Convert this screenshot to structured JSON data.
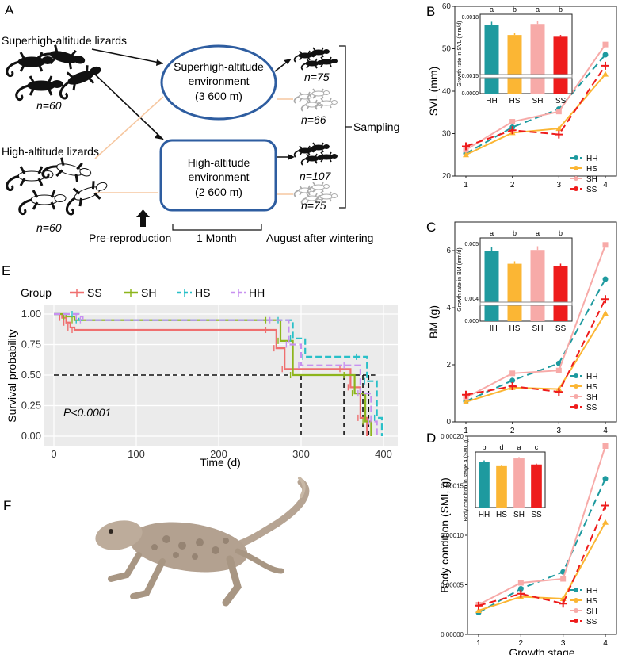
{
  "panel_letters": {
    "a": "A",
    "b": "B",
    "c": "C",
    "d": "D",
    "e": "E",
    "f": "F"
  },
  "colors": {
    "HH": "#1e9a9f",
    "HS": "#fbb634",
    "SH": "#f7aaa8",
    "SS": "#ee1c1c",
    "SS_km": "#ef6f6f",
    "SH_km": "#8db51c",
    "HS_km": "#29c0c8",
    "HH_km": "#c891f0",
    "box": "#2e5da0",
    "lizard_dark": "#111111",
    "lizard_light": "#ffffff"
  },
  "diagram": {
    "source_super_label": "Superhigh-altitude lizards",
    "source_super_n": "n=60",
    "source_high_label": "High-altitude lizards",
    "source_high_n": "n=60",
    "env_super_line1": "Superhigh-altitude",
    "env_super_line2": "environment",
    "env_super_line3": "(3 600 m)",
    "env_high_line1": "High-altitude",
    "env_high_line2": "environment",
    "env_high_line3": "(2 600 m)",
    "out_n1": "n=75",
    "out_n2": "n=66",
    "out_n3": "n=107",
    "out_n4": "n=75",
    "sampling": "Sampling",
    "pre_reproduction": "Pre-reproduction",
    "duration": "1 Month",
    "after": "August after wintering"
  },
  "chart_data": [
    {
      "id": "B",
      "type": "line",
      "title": "",
      "xlabel": "",
      "ylabel": "SVL (mm)",
      "categories": [
        1,
        2,
        3,
        4
      ],
      "ylim": [
        20,
        60
      ],
      "yticks": [
        20,
        30,
        40,
        50,
        60
      ],
      "series": [
        {
          "name": "HH",
          "values": [
            25.3,
            31.5,
            35.8,
            48.6
          ]
        },
        {
          "name": "HS",
          "values": [
            25.0,
            30.2,
            31.2,
            44.0
          ]
        },
        {
          "name": "SH",
          "values": [
            26.2,
            32.8,
            35.2,
            51.0
          ]
        },
        {
          "name": "SS",
          "values": [
            27.0,
            30.8,
            29.8,
            46.0
          ]
        }
      ],
      "inset": {
        "type": "bar",
        "ylabel": "Growth rate in SVL (mm/d)",
        "categories": [
          "HH",
          "HS",
          "SH",
          "SS"
        ],
        "values": [
          0.00155,
          0.00133,
          0.00158,
          0.00129
        ],
        "errors": [
          8e-05,
          4e-05,
          6e-05,
          4e-05
        ],
        "letters": [
          "a",
          "b",
          "a",
          "b"
        ],
        "ylim": [
          0,
          0.0018
        ],
        "yticks": [
          "0.0000",
          "0.0015",
          "0.0018"
        ]
      }
    },
    {
      "id": "C",
      "type": "line",
      "title": "",
      "xlabel": "",
      "ylabel": "BM (g)",
      "categories": [
        1,
        2,
        3,
        4
      ],
      "ylim": [
        0,
        7
      ],
      "yticks": [
        0,
        2,
        4,
        6
      ],
      "series": [
        {
          "name": "HH",
          "values": [
            0.72,
            1.45,
            2.05,
            5.0
          ]
        },
        {
          "name": "HS",
          "values": [
            0.7,
            1.2,
            1.15,
            3.8
          ]
        },
        {
          "name": "SH",
          "values": [
            0.85,
            1.7,
            1.8,
            6.2
          ]
        },
        {
          "name": "SS",
          "values": [
            0.95,
            1.25,
            1.05,
            4.3
          ]
        }
      ],
      "inset": {
        "type": "bar",
        "ylabel": "Growth rate in BM (mm/d)",
        "categories": [
          "HH",
          "HS",
          "SH",
          "SS"
        ],
        "values": [
          0.00567,
          0.00462,
          0.00573,
          0.00443
        ],
        "errors": [
          0.0003,
          0.0002,
          0.0003,
          0.0002
        ],
        "letters": [
          "a",
          "b",
          "a",
          "b"
        ],
        "ylim": [
          0,
          0.0067
        ],
        "yticks": [
          "0.000",
          "0.004",
          "0.005"
        ]
      }
    },
    {
      "id": "D",
      "type": "line",
      "title": "",
      "xlabel": "Growth stage",
      "ylabel": "Body condition (SMI, g)",
      "categories": [
        1,
        2,
        3,
        4
      ],
      "ylim": [
        0,
        0.0002
      ],
      "yticks": [
        "0.00000",
        "0.00005",
        "0.00010",
        "0.00015",
        "0.00020"
      ],
      "series": [
        {
          "name": "HH",
          "values": [
            2.2e-05,
            4.6e-05,
            6.3e-05,
            0.000157
          ]
        },
        {
          "name": "HS",
          "values": [
            2.4e-05,
            3.8e-05,
            3.6e-05,
            0.000113
          ]
        },
        {
          "name": "SH",
          "values": [
            3e-05,
            5.2e-05,
            5.6e-05,
            0.00019
          ]
        },
        {
          "name": "SS",
          "values": [
            2.9e-05,
            4.1e-05,
            3.1e-05,
            0.00013
          ]
        }
      ],
      "inset": {
        "type": "bar",
        "ylabel": "Body condition in stage 4 (SMI, g)",
        "categories": [
          "HH",
          "HS",
          "SH",
          "SS"
        ],
        "values": [
          0.000165,
          0.000149,
          0.000177,
          0.000155
        ],
        "errors": [
          5e-06,
          3e-06,
          5e-06,
          3e-06
        ],
        "letters": [
          "b",
          "d",
          "a",
          "c"
        ],
        "ylim": [
          0,
          0.0002
        ]
      }
    },
    {
      "id": "E",
      "type": "line",
      "title": "",
      "xlabel": "Time (d)",
      "ylabel": "Survival probability",
      "legend_title": "Group",
      "legend": [
        "SS",
        "SH",
        "HS",
        "HH"
      ],
      "xlim": [
        0,
        410
      ],
      "xticks": [
        0,
        100,
        200,
        300,
        400
      ],
      "ylim": [
        0,
        1
      ],
      "yticks": [
        "0.00",
        "0.25",
        "0.50",
        "0.75",
        "1.00"
      ],
      "pvalue": "P<0.0001",
      "median_survival": [
        {
          "group": "SS",
          "x": 300
        },
        {
          "group": "SH",
          "x": 352
        },
        {
          "group": "HS",
          "x": 375
        },
        {
          "group": "HH",
          "x": 382
        }
      ],
      "series": [
        {
          "name": "SS",
          "x": [
            0,
            10,
            15,
            20,
            25,
            260,
            270,
            280,
            350,
            360,
            372,
            380
          ],
          "y": [
            1.0,
            0.97,
            0.93,
            0.89,
            0.87,
            0.87,
            0.72,
            0.55,
            0.55,
            0.4,
            0.15,
            0.0
          ]
        },
        {
          "name": "SH",
          "x": [
            0,
            15,
            25,
            260,
            275,
            290,
            355,
            365,
            378,
            385
          ],
          "y": [
            1.0,
            0.98,
            0.95,
            0.95,
            0.78,
            0.5,
            0.5,
            0.35,
            0.12,
            0.0
          ]
        },
        {
          "name": "HS",
          "x": [
            0,
            25,
            30,
            275,
            290,
            305,
            370,
            380,
            392,
            398
          ],
          "y": [
            1.0,
            1.0,
            0.95,
            0.95,
            0.8,
            0.65,
            0.65,
            0.45,
            0.15,
            0.0
          ]
        },
        {
          "name": "HH",
          "x": [
            0,
            30,
            35,
            265,
            285,
            300,
            355,
            372,
            385,
            392
          ],
          "y": [
            1.0,
            0.98,
            0.95,
            0.95,
            0.75,
            0.58,
            0.58,
            0.35,
            0.12,
            0.0
          ]
        }
      ]
    }
  ]
}
